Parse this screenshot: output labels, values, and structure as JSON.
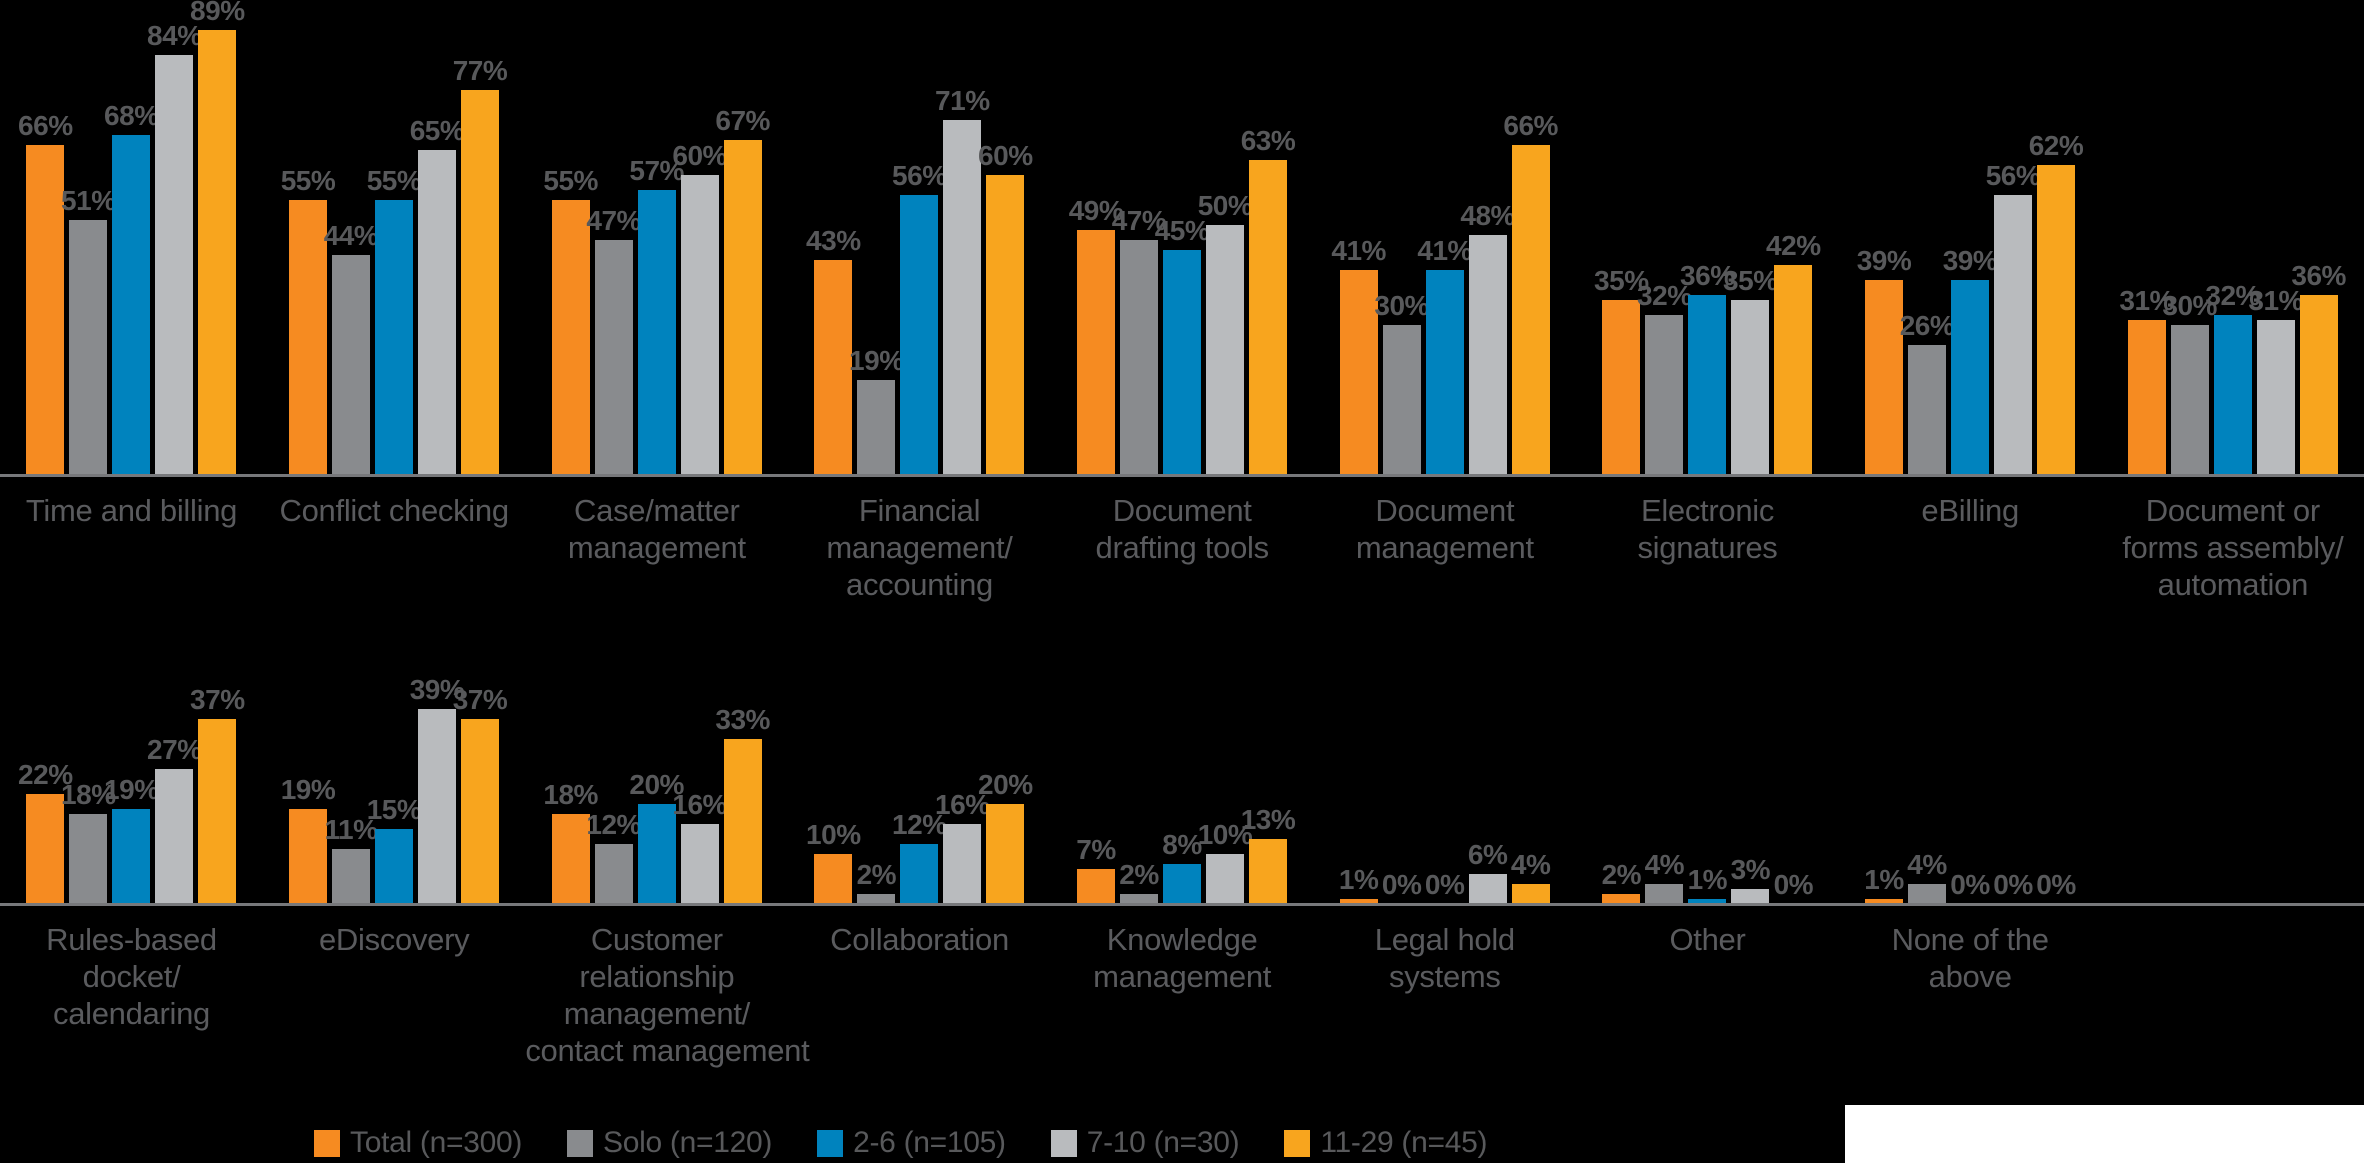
{
  "chart_data": {
    "type": "bar",
    "value_suffix": "%",
    "ylim": [
      0,
      100
    ],
    "grid": false,
    "legend_position": "bottom",
    "background_color": "#000000",
    "axis_color": "#77787B",
    "value_label_color": "#58595B",
    "category_label_color": "#5A5B5E",
    "legend": [
      {
        "label": "Total (n=300)",
        "color": "#F68B21"
      },
      {
        "label": "Solo (n=120)",
        "color": "#898B8E"
      },
      {
        "label": "2-6 (n=105)",
        "color": "#0083BE"
      },
      {
        "label": "7-10 (n=30)",
        "color": "#B9BBBE"
      },
      {
        "label": "11-29 (n=45)",
        "color": "#F8A51E"
      }
    ],
    "rows": [
      {
        "groups": [
          {
            "label": "Time and billing",
            "lines": [
              "Time and billing"
            ],
            "values": [
              66,
              51,
              68,
              84,
              89
            ]
          },
          {
            "label": "Conflict checking",
            "lines": [
              "Conflict checking"
            ],
            "values": [
              55,
              44,
              55,
              65,
              77
            ]
          },
          {
            "label": "Case/matter management",
            "lines": [
              "Case/matter",
              "management"
            ],
            "values": [
              55,
              47,
              57,
              60,
              67
            ]
          },
          {
            "label": "Financial management/accounting",
            "lines": [
              "Financial",
              "management/",
              "accounting"
            ],
            "values": [
              43,
              19,
              56,
              71,
              60
            ]
          },
          {
            "label": "Document drafting tools",
            "lines": [
              "Document",
              "drafting tools"
            ],
            "values": [
              49,
              47,
              45,
              50,
              63
            ]
          },
          {
            "label": "Document management",
            "lines": [
              "Document",
              "management"
            ],
            "values": [
              41,
              30,
              41,
              48,
              66
            ]
          },
          {
            "label": "Electronic signatures",
            "lines": [
              "Electronic",
              "signatures"
            ],
            "values": [
              35,
              32,
              36,
              35,
              42
            ]
          },
          {
            "label": "eBilling",
            "lines": [
              "eBilling"
            ],
            "values": [
              39,
              26,
              39,
              56,
              62
            ]
          },
          {
            "label": "Document or forms assembly/automation",
            "lines": [
              "Document or",
              "forms assembly/",
              "automation"
            ],
            "values": [
              31,
              30,
              32,
              31,
              36
            ]
          }
        ]
      },
      {
        "groups": [
          {
            "label": "Rules-based docket/calendaring",
            "lines": [
              "Rules-based",
              "docket/",
              "calendaring"
            ],
            "values": [
              22,
              18,
              19,
              27,
              37
            ]
          },
          {
            "label": "eDiscovery",
            "lines": [
              "eDiscovery"
            ],
            "values": [
              19,
              11,
              15,
              39,
              37
            ]
          },
          {
            "label": "Customer relationship management/contact management",
            "lines": [
              "Customer",
              "relationship",
              "management/",
              "contact management"
            ],
            "values": [
              18,
              12,
              20,
              16,
              33
            ]
          },
          {
            "label": "Collaboration",
            "lines": [
              "Collaboration"
            ],
            "values": [
              10,
              2,
              12,
              16,
              20
            ]
          },
          {
            "label": "Knowledge management",
            "lines": [
              "Knowledge",
              "management"
            ],
            "values": [
              7,
              2,
              8,
              10,
              13
            ]
          },
          {
            "label": "Legal hold systems",
            "lines": [
              "Legal hold",
              "systems"
            ],
            "values": [
              1,
              0,
              0,
              6,
              4
            ]
          },
          {
            "label": "Other",
            "lines": [
              "Other"
            ],
            "values": [
              2,
              4,
              1,
              3,
              0
            ]
          },
          {
            "label": "None of the above",
            "lines": [
              "None of the",
              "above"
            ],
            "values": [
              1,
              4,
              0,
              0,
              0
            ]
          }
        ]
      }
    ]
  }
}
